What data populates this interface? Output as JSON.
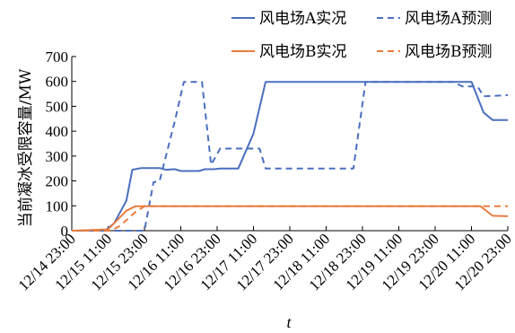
{
  "chart_data": {
    "type": "line",
    "title": "",
    "xlabel": "t",
    "ylabel": "当前凝冰受限容量/MW",
    "ylim": [
      0,
      700
    ],
    "yticks": [
      0,
      100,
      200,
      300,
      400,
      500,
      600,
      700
    ],
    "xlim": [
      "12/14 23:00",
      "12/20 23:00"
    ],
    "xticks": [
      "12/14 23:00",
      "12/15 11:00",
      "12/15 23:00",
      "12/16 11:00",
      "12/16 23:00",
      "12/17 11:00",
      "12/17 23:00",
      "12/18 11:00",
      "12/18 23:00",
      "12/19 11:00",
      "12/19 23:00",
      "12/20 11:00",
      "12/20 23:00"
    ],
    "grid": false,
    "legend_position": "top-right",
    "series": [
      {
        "name": "风电场A实况",
        "color": "#4a6fbf",
        "dash": "solid",
        "points": [
          [
            "12/14 23:00",
            0
          ],
          [
            "12/15 10:00",
            0
          ],
          [
            "12/15 13:00",
            30
          ],
          [
            "12/15 17:00",
            120
          ],
          [
            "12/15 19:00",
            245
          ],
          [
            "12/15 22:00",
            252
          ],
          [
            "12/16 04:00",
            252
          ],
          [
            "12/16 06:00",
            245
          ],
          [
            "12/16 09:00",
            247
          ],
          [
            "12/16 11:00",
            240
          ],
          [
            "12/16 17:00",
            240
          ],
          [
            "12/16 19:00",
            247
          ],
          [
            "12/16 22:00",
            247
          ],
          [
            "12/17 00:00",
            250
          ],
          [
            "12/17 06:00",
            250
          ],
          [
            "12/17 11:00",
            390
          ],
          [
            "12/17 15:00",
            598
          ],
          [
            "12/20 11:00",
            598
          ],
          [
            "12/20 15:00",
            475
          ],
          [
            "12/20 18:00",
            445
          ],
          [
            "12/20 23:00",
            445
          ]
        ]
      },
      {
        "name": "风电场A预测",
        "color": "#4a6fbf",
        "dash": "dashed",
        "points": [
          [
            "12/14 23:00",
            0
          ],
          [
            "12/15 23:00",
            0
          ],
          [
            "12/16 02:00",
            195
          ],
          [
            "12/16 04:00",
            200
          ],
          [
            "12/16 09:00",
            440
          ],
          [
            "12/16 12:00",
            598
          ],
          [
            "12/16 18:00",
            598
          ],
          [
            "12/16 21:00",
            265
          ],
          [
            "12/17 00:00",
            330
          ],
          [
            "12/17 13:00",
            330
          ],
          [
            "12/17 15:00",
            250
          ],
          [
            "12/18 20:00",
            250
          ],
          [
            "12/19 00:00",
            598
          ],
          [
            "12/20 05:00",
            598
          ],
          [
            "12/20 08:00",
            580
          ],
          [
            "12/20 13:00",
            580
          ],
          [
            "12/20 15:00",
            540
          ],
          [
            "12/20 23:00",
            545
          ]
        ]
      },
      {
        "name": "风电场B实况",
        "color": "#e87d3e",
        "dash": "solid",
        "points": [
          [
            "12/14 23:00",
            0
          ],
          [
            "12/15 11:00",
            5
          ],
          [
            "12/15 13:00",
            30
          ],
          [
            "12/15 17:00",
            80
          ],
          [
            "12/15 20:00",
            98
          ],
          [
            "12/20 14:00",
            98
          ],
          [
            "12/20 18:00",
            60
          ],
          [
            "12/20 23:00",
            58
          ]
        ]
      },
      {
        "name": "风电场B预测",
        "color": "#e87d3e",
        "dash": "dashed",
        "points": [
          [
            "12/14 23:00",
            0
          ],
          [
            "12/15 12:00",
            0
          ],
          [
            "12/15 15:00",
            20
          ],
          [
            "12/15 20:00",
            75
          ],
          [
            "12/15 23:00",
            98
          ],
          [
            "12/20 18:00",
            98
          ],
          [
            "12/20 23:00",
            98
          ]
        ]
      }
    ]
  }
}
